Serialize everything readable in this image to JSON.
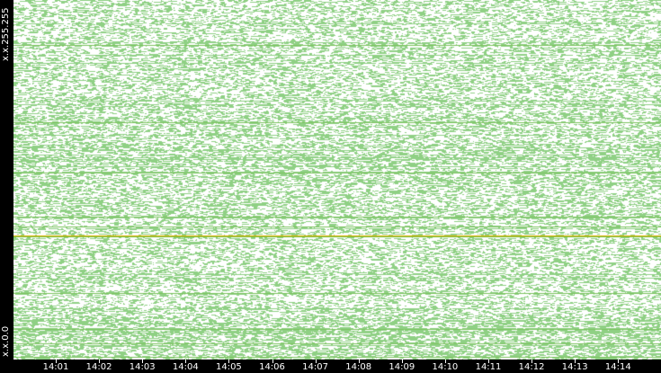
{
  "chart_data": {
    "type": "heatmap",
    "title": "",
    "xlabel": "",
    "ylabel": "",
    "x_ticks": [
      "14:01",
      "14:02",
      "14:03",
      "14:04",
      "14:05",
      "14:06",
      "14:07",
      "14:08",
      "14:09",
      "14:10",
      "14:11",
      "14:12",
      "14:13",
      "14:14"
    ],
    "y_labels": {
      "top": "x.x.255.255",
      "bottom": "x.x.0.0"
    },
    "colors": {
      "point": "#8fd084",
      "dense_line": "#7cc35f",
      "highlight_line": "#e0b000",
      "background": "#ffffff",
      "frame": "#000000"
    },
    "highlight_row_fraction": 0.345,
    "grid": false,
    "legend": "none"
  }
}
